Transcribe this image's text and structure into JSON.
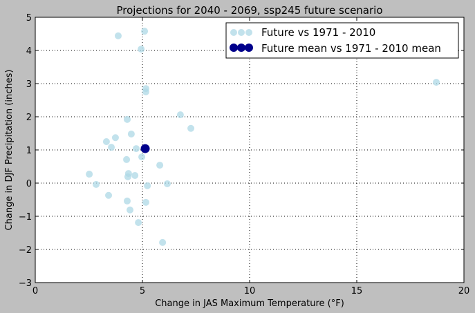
{
  "chart_data": {
    "type": "scatter",
    "title": "Projections for 2040 - 2069, ssp245 future scenario",
    "xlabel": "Change in JAS Maximum Temperature (°F)",
    "ylabel": "Change in DJF Precipitation (inches)",
    "xlim": [
      0,
      20
    ],
    "ylim": [
      -3,
      5
    ],
    "xticks": [
      0,
      5,
      10,
      15,
      20
    ],
    "yticks": [
      -3,
      -2,
      -1,
      0,
      1,
      2,
      3,
      4,
      5
    ],
    "xtick_labels": [
      "0",
      "5",
      "10",
      "15",
      "20"
    ],
    "ytick_labels": [
      "−3",
      "−2",
      "−1",
      "0",
      "1",
      "2",
      "3",
      "4",
      "5"
    ],
    "grid": true,
    "legend_position": "top-right",
    "series": [
      {
        "name": "Future vs 1971 - 2010",
        "color": "#add8e6",
        "points": [
          [
            3.87,
            4.44
          ],
          [
            5.1,
            4.58
          ],
          [
            4.94,
            4.04
          ],
          [
            5.16,
            2.85
          ],
          [
            5.16,
            2.75
          ],
          [
            18.71,
            3.04
          ],
          [
            6.77,
            2.06
          ],
          [
            7.26,
            1.65
          ],
          [
            4.29,
            1.92
          ],
          [
            4.48,
            1.48
          ],
          [
            3.74,
            1.37
          ],
          [
            3.32,
            1.25
          ],
          [
            3.55,
            1.08
          ],
          [
            4.71,
            1.04
          ],
          [
            4.97,
            0.79
          ],
          [
            4.26,
            0.71
          ],
          [
            5.81,
            0.54
          ],
          [
            2.52,
            0.27
          ],
          [
            4.35,
            0.29
          ],
          [
            4.32,
            0.19
          ],
          [
            4.65,
            0.23
          ],
          [
            2.84,
            -0.04
          ],
          [
            6.16,
            -0.02
          ],
          [
            5.23,
            -0.08
          ],
          [
            3.42,
            -0.37
          ],
          [
            4.29,
            -0.54
          ],
          [
            5.16,
            -0.58
          ],
          [
            4.42,
            -0.81
          ],
          [
            4.81,
            -1.19
          ],
          [
            5.94,
            -1.79
          ]
        ]
      },
      {
        "name": "Future mean vs 1971 - 2010 mean",
        "color": "#00008b",
        "points": [
          [
            5.13,
            1.04
          ]
        ]
      }
    ]
  }
}
